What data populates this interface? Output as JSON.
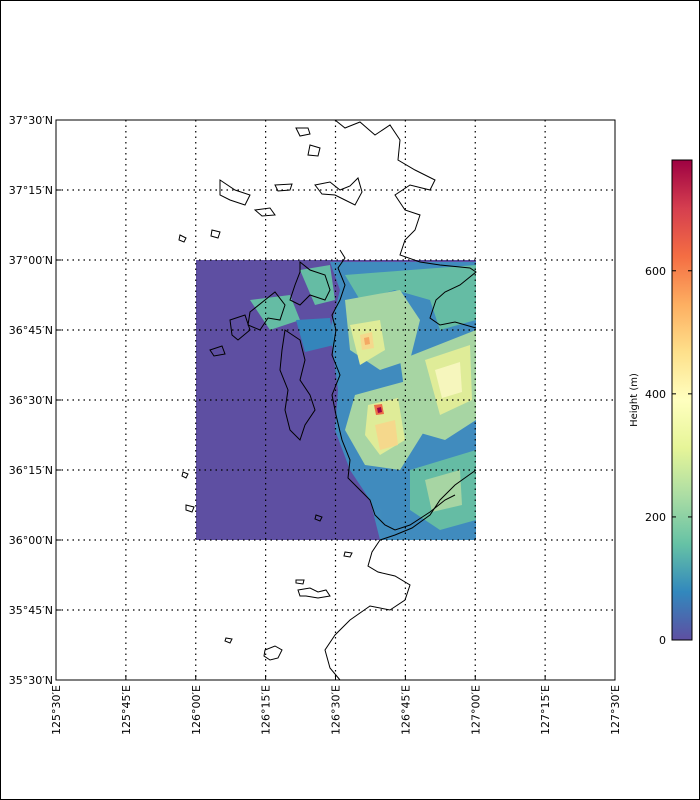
{
  "map": {
    "lat_labels": [
      "37°30′N",
      "37°15′N",
      "37°00′N",
      "36°45′N",
      "36°30′N",
      "36°15′N",
      "36°00′N",
      "35°45′N",
      "35°30′N"
    ],
    "lon_labels": [
      "125°30′E",
      "125°45′E",
      "126°00′E",
      "126°15′E",
      "126°30′E",
      "126°45′E",
      "127°00′E",
      "127°15′E",
      "127°30′E"
    ],
    "extent": {
      "lon_min": 125.5,
      "lon_max": 127.5,
      "lat_min": 35.5,
      "lat_max": 37.5
    },
    "data_domain": {
      "lon_min": 126.0,
      "lon_max": 127.0,
      "lat_min": 36.0,
      "lat_max": 37.0
    },
    "gridlines": "dotted",
    "colormap": "Spectral_r",
    "ocean_color": "#5e4fa2"
  },
  "colorbar": {
    "label": "Height (m)",
    "ticks": [
      "0",
      "200",
      "400",
      "600"
    ],
    "tick_values": [
      0,
      200,
      400,
      600
    ],
    "vmin": 0,
    "vmax": 780
  }
}
